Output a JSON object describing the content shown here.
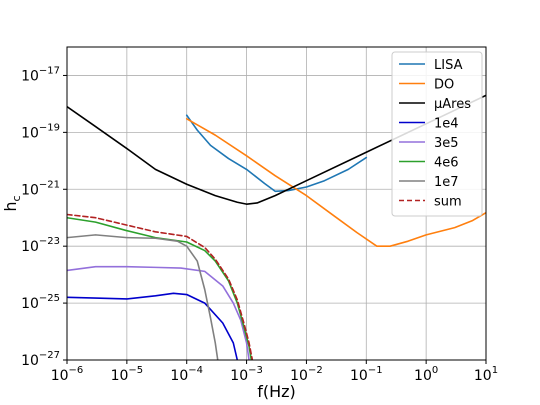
{
  "chart_data": {
    "type": "line",
    "title": "",
    "xlabel": "f(Hz)",
    "ylabel_base": "h",
    "ylabel_sub": "c",
    "x_scale": "log",
    "y_scale": "log",
    "xlim": [
      1e-06,
      10
    ],
    "ylim": [
      1e-27,
      1e-16
    ],
    "grid": true,
    "legend_position": "top-right",
    "x_ticks": [
      {
        "value": 1e-06,
        "base": "10",
        "exp": "−6"
      },
      {
        "value": 1e-05,
        "base": "10",
        "exp": "−5"
      },
      {
        "value": 0.0001,
        "base": "10",
        "exp": "−4"
      },
      {
        "value": 0.001,
        "base": "10",
        "exp": "−3"
      },
      {
        "value": 0.01,
        "base": "10",
        "exp": "−2"
      },
      {
        "value": 0.1,
        "base": "10",
        "exp": "−1"
      },
      {
        "value": 1,
        "base": "10",
        "exp": "0"
      },
      {
        "value": 10,
        "base": "10",
        "exp": "1"
      }
    ],
    "y_ticks": [
      {
        "value": 1e-27,
        "base": "10",
        "exp": "−27"
      },
      {
        "value": 1e-25,
        "base": "10",
        "exp": "−25"
      },
      {
        "value": 1e-23,
        "base": "10",
        "exp": "−23"
      },
      {
        "value": 1e-21,
        "base": "10",
        "exp": "−21"
      },
      {
        "value": 1e-19,
        "base": "10",
        "exp": "−19"
      },
      {
        "value": 1e-17,
        "base": "10",
        "exp": "−17"
      }
    ],
    "series": [
      {
        "name": "LISA",
        "color": "#1f77b4",
        "dash": "solid",
        "points": [
          [
            0.0001,
            4e-19
          ],
          [
            0.00015,
            1.2e-19
          ],
          [
            0.00025,
            3.5e-20
          ],
          [
            0.0005,
            1.2e-20
          ],
          [
            0.001,
            5e-21
          ],
          [
            0.002,
            1.6e-21
          ],
          [
            0.003,
            8.5e-22
          ],
          [
            0.005,
            9e-22
          ],
          [
            0.01,
            1.2e-21
          ],
          [
            0.02,
            2e-21
          ],
          [
            0.05,
            5e-21
          ],
          [
            0.1,
            1.3e-20
          ]
        ]
      },
      {
        "name": "DO",
        "color": "#ff7f0e",
        "dash": "solid",
        "points": [
          [
            0.0001,
            3e-19
          ],
          [
            0.0003,
            8e-20
          ],
          [
            0.001,
            1.5e-20
          ],
          [
            0.003,
            3e-21
          ],
          [
            0.01,
            6e-22
          ],
          [
            0.03,
            1.1e-22
          ],
          [
            0.07,
            3e-23
          ],
          [
            0.15,
            1e-23
          ],
          [
            0.25,
            1e-23
          ],
          [
            0.5,
            1.5e-23
          ],
          [
            1,
            2.5e-23
          ],
          [
            3,
            4.5e-23
          ],
          [
            6,
            8e-23
          ],
          [
            10,
            1.5e-22
          ]
        ]
      },
      {
        "name": "μAres",
        "color": "#000000",
        "dash": "solid",
        "points": [
          [
            1e-06,
            8e-19
          ],
          [
            3e-06,
            1.6e-19
          ],
          [
            1e-05,
            2.7e-20
          ],
          [
            3e-05,
            5e-21
          ],
          [
            0.0001,
            1.5e-21
          ],
          [
            0.0003,
            6e-22
          ],
          [
            0.0007,
            3.5e-22
          ],
          [
            0.001,
            3e-22
          ],
          [
            0.0015,
            3.3e-22
          ],
          [
            0.003,
            6e-22
          ],
          [
            0.01,
            2e-21
          ],
          [
            0.1,
            2e-20
          ],
          [
            1,
            2e-19
          ],
          [
            10,
            2e-18
          ]
        ]
      },
      {
        "name": "1e4",
        "color": "#0000cc",
        "dash": "solid",
        "points": [
          [
            1e-06,
            1.6e-25
          ],
          [
            3e-06,
            1.5e-25
          ],
          [
            1e-05,
            1.4e-25
          ],
          [
            3e-05,
            1.8e-25
          ],
          [
            6e-05,
            2.2e-25
          ],
          [
            0.0001,
            2e-25
          ],
          [
            0.0002,
            1e-25
          ],
          [
            0.0004,
            2e-26
          ],
          [
            0.0006,
            4e-27
          ],
          [
            0.0007,
            1e-27
          ]
        ]
      },
      {
        "name": "3e5",
        "color": "#9370db",
        "dash": "solid",
        "points": [
          [
            1e-06,
            1.4e-24
          ],
          [
            3e-06,
            1.9e-24
          ],
          [
            1e-05,
            1.9e-24
          ],
          [
            3e-05,
            1.8e-24
          ],
          [
            8e-05,
            1.7e-24
          ],
          [
            0.0002,
            1.3e-24
          ],
          [
            0.0004,
            4e-25
          ],
          [
            0.0006,
            1e-25
          ],
          [
            0.0008,
            2.5e-26
          ],
          [
            0.001,
            4e-27
          ],
          [
            0.0011,
            1e-27
          ]
        ]
      },
      {
        "name": "4e6",
        "color": "#2ca02c",
        "dash": "solid",
        "points": [
          [
            1e-06,
            1e-22
          ],
          [
            3e-06,
            7e-23
          ],
          [
            1e-05,
            3.5e-23
          ],
          [
            3e-05,
            2e-23
          ],
          [
            0.0001,
            1.4e-23
          ],
          [
            0.0002,
            7e-24
          ],
          [
            0.0003,
            3e-24
          ],
          [
            0.0005,
            6e-25
          ],
          [
            0.0007,
            1e-25
          ],
          [
            0.0009,
            1.5e-26
          ],
          [
            0.0011,
            3e-27
          ],
          [
            0.0012,
            1e-27
          ]
        ]
      },
      {
        "name": "1e7",
        "color": "#808080",
        "dash": "solid",
        "points": [
          [
            1e-06,
            2e-23
          ],
          [
            3e-06,
            2.5e-23
          ],
          [
            1e-05,
            2e-23
          ],
          [
            3e-05,
            1.9e-23
          ],
          [
            7e-05,
            1.5e-23
          ],
          [
            0.0001,
            1e-23
          ],
          [
            0.00015,
            3e-24
          ],
          [
            0.0002,
            3e-25
          ],
          [
            0.00025,
            3e-26
          ],
          [
            0.0003,
            4e-27
          ],
          [
            0.00033,
            1e-27
          ]
        ]
      },
      {
        "name": "sum",
        "color": "#b22222",
        "dash": "dashed",
        "points": [
          [
            1e-06,
            1.3e-22
          ],
          [
            3e-06,
            1e-22
          ],
          [
            1e-05,
            5.5e-23
          ],
          [
            3e-05,
            3.2e-23
          ],
          [
            0.0001,
            2.2e-23
          ],
          [
            0.0002,
            9e-24
          ],
          [
            0.0003,
            3.5e-24
          ],
          [
            0.0005,
            7e-25
          ],
          [
            0.0007,
            1.3e-25
          ],
          [
            0.0009,
            2e-26
          ],
          [
            0.0011,
            4e-27
          ],
          [
            0.00125,
            1e-27
          ]
        ]
      }
    ]
  }
}
